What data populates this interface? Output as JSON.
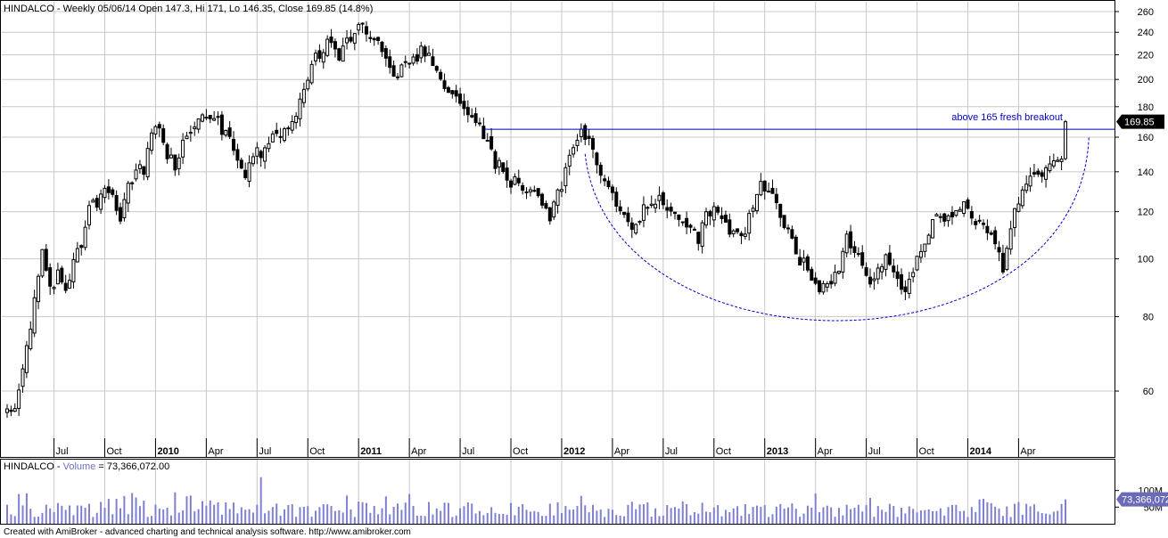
{
  "price_header": {
    "symbol": "HINDALCO",
    "text": "HINDALCO - Weekly 05/06/14 Open 147.3, Hi 171, Lo 146.35, Close 169.85 (14.8%)"
  },
  "volume_header": {
    "symbol": "HINDALCO",
    "dash": " - ",
    "label": "Volume",
    "value": " = 73,366,072.00"
  },
  "footer": "Created with AmiBroker - advanced charting and technical analysis software. http://www.amibroker.com",
  "annotation": "above 165 fresh breakout",
  "last_price_tag": "169.85",
  "last_volume_tag": "73,366,072",
  "colors": {
    "candle": "#000000",
    "volume_bar": "#8080d0",
    "annotation": "#0000cc",
    "grid": "#c8c8c8",
    "tag_bg": "#000000",
    "volume_tag_bg": "#6a6ab8"
  },
  "chart_data": {
    "type": "candlestick",
    "title": "HINDALCO - Weekly 05/06/14 Open 147.3, Hi 171, Lo 146.35, Close 169.85 (14.8%)",
    "scale": "log",
    "ylim": [
      50,
      270
    ],
    "price_ticks": [
      60,
      80,
      100,
      120,
      140,
      160,
      180,
      200,
      220,
      240,
      260
    ],
    "x_ticks": [
      {
        "label": "Jul",
        "bold": false,
        "bar": 12
      },
      {
        "label": "Oct",
        "bold": false,
        "bar": 25
      },
      {
        "label": "2010",
        "bold": true,
        "bar": 38
      },
      {
        "label": "Apr",
        "bold": false,
        "bar": 51
      },
      {
        "label": "Jul",
        "bold": false,
        "bar": 64
      },
      {
        "label": "Oct",
        "bold": false,
        "bar": 77
      },
      {
        "label": "2011",
        "bold": true,
        "bar": 90
      },
      {
        "label": "Apr",
        "bold": false,
        "bar": 103
      },
      {
        "label": "Jul",
        "bold": false,
        "bar": 116
      },
      {
        "label": "Oct",
        "bold": false,
        "bar": 129
      },
      {
        "label": "2012",
        "bold": true,
        "bar": 142
      },
      {
        "label": "Apr",
        "bold": false,
        "bar": 155
      },
      {
        "label": "Jul",
        "bold": false,
        "bar": 168
      },
      {
        "label": "Oct",
        "bold": false,
        "bar": 181
      },
      {
        "label": "2013",
        "bold": true,
        "bar": 194
      },
      {
        "label": "Apr",
        "bold": false,
        "bar": 207
      },
      {
        "label": "Jul",
        "bold": false,
        "bar": 220
      },
      {
        "label": "Oct",
        "bold": false,
        "bar": 233
      },
      {
        "label": "2014",
        "bold": true,
        "bar": 246
      },
      {
        "label": "Apr",
        "bold": false,
        "bar": 259
      }
    ],
    "close_anchors": [
      [
        0,
        56
      ],
      [
        2,
        55
      ],
      [
        4,
        65
      ],
      [
        6,
        78
      ],
      [
        8,
        92
      ],
      [
        9,
        104
      ],
      [
        11,
        88
      ],
      [
        13,
        94
      ],
      [
        15,
        88
      ],
      [
        17,
        100
      ],
      [
        19,
        105
      ],
      [
        21,
        125
      ],
      [
        23,
        120
      ],
      [
        25,
        132
      ],
      [
        27,
        127
      ],
      [
        29,
        118
      ],
      [
        31,
        131
      ],
      [
        33,
        140
      ],
      [
        35,
        142
      ],
      [
        37,
        162
      ],
      [
        39,
        168
      ],
      [
        41,
        150
      ],
      [
        43,
        142
      ],
      [
        45,
        155
      ],
      [
        47,
        166
      ],
      [
        49,
        170
      ],
      [
        51,
        176
      ],
      [
        53,
        175
      ],
      [
        55,
        165
      ],
      [
        57,
        160
      ],
      [
        59,
        148
      ],
      [
        61,
        140
      ],
      [
        63,
        152
      ],
      [
        65,
        148
      ],
      [
        67,
        156
      ],
      [
        69,
        162
      ],
      [
        71,
        163
      ],
      [
        73,
        170
      ],
      [
        75,
        185
      ],
      [
        77,
        200
      ],
      [
        79,
        218
      ],
      [
        81,
        222
      ],
      [
        83,
        236
      ],
      [
        85,
        218
      ],
      [
        87,
        232
      ],
      [
        89,
        240
      ],
      [
        91,
        248
      ],
      [
        93,
        236
      ],
      [
        95,
        232
      ],
      [
        97,
        212
      ],
      [
        99,
        205
      ],
      [
        101,
        208
      ],
      [
        103,
        214
      ],
      [
        105,
        220
      ],
      [
        107,
        224
      ],
      [
        109,
        210
      ],
      [
        111,
        198
      ],
      [
        113,
        188
      ],
      [
        115,
        186
      ],
      [
        117,
        180
      ],
      [
        119,
        170
      ],
      [
        121,
        165
      ],
      [
        123,
        158
      ],
      [
        125,
        145
      ],
      [
        127,
        142
      ],
      [
        129,
        135
      ],
      [
        131,
        135
      ],
      [
        133,
        132
      ],
      [
        135,
        128
      ],
      [
        137,
        125
      ],
      [
        139,
        118
      ],
      [
        141,
        128
      ],
      [
        143,
        140
      ],
      [
        145,
        152
      ],
      [
        147,
        162
      ],
      [
        149,
        158
      ],
      [
        151,
        145
      ],
      [
        153,
        135
      ],
      [
        155,
        128
      ],
      [
        157,
        120
      ],
      [
        159,
        115
      ],
      [
        161,
        113
      ],
      [
        163,
        121
      ],
      [
        165,
        122
      ],
      [
        167,
        125
      ],
      [
        169,
        120
      ],
      [
        171,
        118
      ],
      [
        173,
        117
      ],
      [
        175,
        112
      ],
      [
        177,
        108
      ],
      [
        179,
        118
      ],
      [
        181,
        122
      ],
      [
        183,
        116
      ],
      [
        185,
        112
      ],
      [
        187,
        110
      ],
      [
        189,
        112
      ],
      [
        191,
        122
      ],
      [
        193,
        132
      ],
      [
        195,
        130
      ],
      [
        197,
        122
      ],
      [
        199,
        114
      ],
      [
        201,
        108
      ],
      [
        203,
        100
      ],
      [
        205,
        96
      ],
      [
        207,
        90
      ],
      [
        209,
        90
      ],
      [
        211,
        92
      ],
      [
        213,
        96
      ],
      [
        215,
        108
      ],
      [
        217,
        104
      ],
      [
        219,
        96
      ],
      [
        221,
        92
      ],
      [
        223,
        96
      ],
      [
        225,
        100
      ],
      [
        227,
        96
      ],
      [
        229,
        88
      ],
      [
        231,
        92
      ],
      [
        233,
        100
      ],
      [
        235,
        108
      ],
      [
        237,
        115
      ],
      [
        239,
        118
      ],
      [
        241,
        116
      ],
      [
        243,
        120
      ],
      [
        245,
        122
      ],
      [
        247,
        118
      ],
      [
        249,
        116
      ],
      [
        251,
        112
      ],
      [
        253,
        104
      ],
      [
        255,
        97
      ],
      [
        257,
        112
      ],
      [
        259,
        125
      ],
      [
        261,
        135
      ],
      [
        263,
        140
      ],
      [
        265,
        138
      ],
      [
        267,
        146
      ],
      [
        269,
        148
      ],
      [
        270,
        147
      ],
      [
        271,
        169.85
      ]
    ],
    "resistance": {
      "price": 165,
      "from_bar": 122,
      "to_bar": 276
    },
    "volume_ticks": [
      {
        "label": "100M",
        "value": 100
      },
      {
        "label": "50M",
        "value": 50
      }
    ],
    "volume_max": 150,
    "volume_last_m": 73.37
  }
}
